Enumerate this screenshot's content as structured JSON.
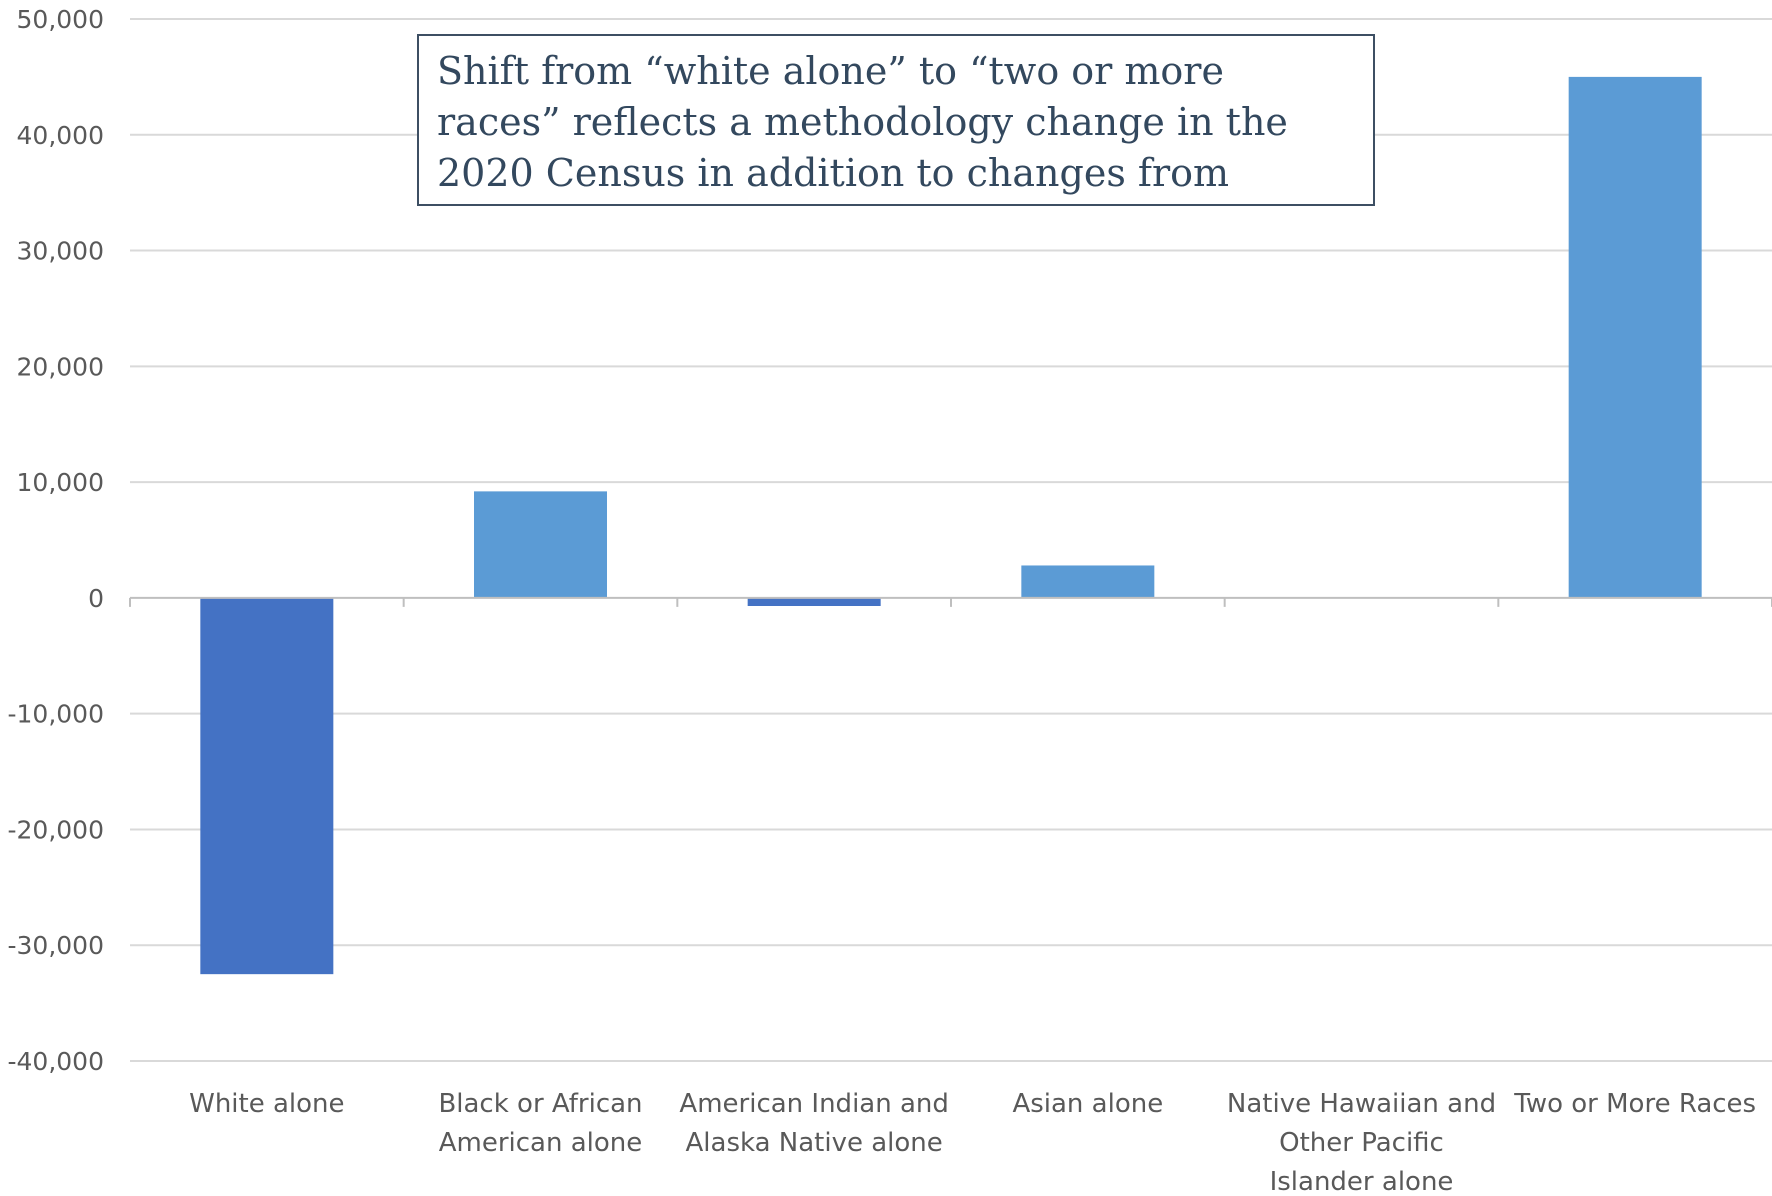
{
  "chart_data": {
    "type": "bar",
    "categories": [
      [
        "White alone"
      ],
      [
        "Black or African",
        "American alone"
      ],
      [
        "American Indian and",
        "Alaska Native alone"
      ],
      [
        "Asian alone"
      ],
      [
        "Native Hawaiian and",
        "Other Pacific",
        "Islander alone"
      ],
      [
        "Two or More Races"
      ]
    ],
    "values": [
      -32500,
      9200,
      -700,
      2800,
      0,
      45000
    ],
    "ylim": [
      -40000,
      50000
    ],
    "yticks": [
      50000,
      40000,
      30000,
      20000,
      10000,
      0,
      -10000,
      -20000,
      -30000,
      -40000
    ],
    "ytick_labels": [
      "50,000",
      "40,000",
      "30,000",
      "20,000",
      "10,000",
      "0",
      "-10,000",
      "-20,000",
      "-30,000",
      "-40,000"
    ],
    "title": "",
    "xlabel": "",
    "ylabel": "",
    "grid": true,
    "colors": {
      "negative": "#4472c4",
      "positive": "#5b9bd5",
      "grid": "#d9d9d9",
      "axis": "#bfbfbf"
    },
    "annotation": "Shift from “white alone” to “two or more races” reflects a methodology change in the 2020 Census in addition to changes from migration"
  }
}
